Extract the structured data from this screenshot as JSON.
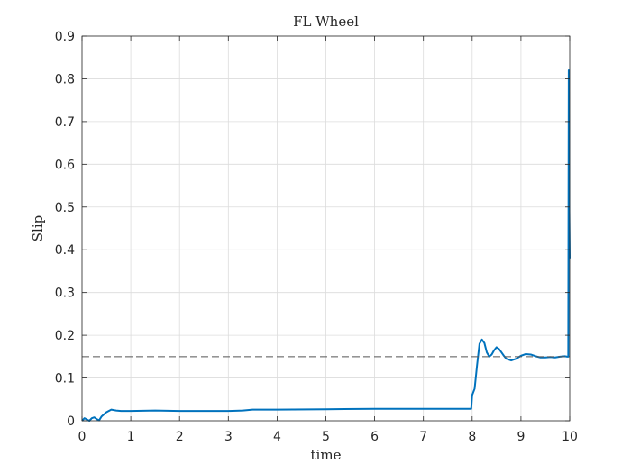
{
  "chart_data": {
    "type": "line",
    "title": "FL Wheel",
    "xlabel": "time",
    "ylabel": "Slip",
    "xlim": [
      0,
      10
    ],
    "ylim": [
      0,
      0.9
    ],
    "xticks": [
      "0",
      "1",
      "2",
      "3",
      "4",
      "5",
      "6",
      "7",
      "8",
      "9",
      "10"
    ],
    "yticks": [
      "0",
      "0.1",
      "0.2",
      "0.3",
      "0.4",
      "0.5",
      "0.6",
      "0.7",
      "0.8",
      "0.9"
    ],
    "grid": true,
    "series": [
      {
        "color": "#0072bd",
        "x": [
          0,
          0.05,
          0.1,
          0.15,
          0.2,
          0.25,
          0.3,
          0.35,
          0.4,
          0.5,
          0.6,
          0.7,
          0.8,
          1,
          1.5,
          2,
          2.5,
          3,
          3.3,
          3.5,
          4,
          5,
          6,
          7,
          7.5,
          7.98,
          8.0,
          8.05,
          8.1,
          8.15,
          8.2,
          8.25,
          8.3,
          8.35,
          8.4,
          8.45,
          8.5,
          8.55,
          8.6,
          8.65,
          8.7,
          8.8,
          8.9,
          9.0,
          9.1,
          9.2,
          9.3,
          9.4,
          9.5,
          9.6,
          9.7,
          9.8,
          9.9,
          9.95,
          9.97,
          9.98,
          9.99,
          10
        ],
        "y": [
          0,
          0.006,
          0.003,
          0,
          0.006,
          0.008,
          0.004,
          0.001,
          0.01,
          0.02,
          0.026,
          0.024,
          0.023,
          0.023,
          0.024,
          0.023,
          0.023,
          0.023,
          0.024,
          0.026,
          0.026,
          0.027,
          0.028,
          0.028,
          0.028,
          0.028,
          0.06,
          0.075,
          0.13,
          0.18,
          0.19,
          0.182,
          0.16,
          0.15,
          0.155,
          0.165,
          0.172,
          0.168,
          0.16,
          0.152,
          0.145,
          0.141,
          0.145,
          0.152,
          0.156,
          0.155,
          0.151,
          0.148,
          0.148,
          0.149,
          0.148,
          0.15,
          0.151,
          0.15,
          0.15,
          0.82,
          0.5,
          0.38
        ]
      },
      {
        "color": "#555555",
        "style": "dashed",
        "x": [
          0,
          10
        ],
        "y": [
          0.15,
          0.15
        ]
      }
    ]
  }
}
